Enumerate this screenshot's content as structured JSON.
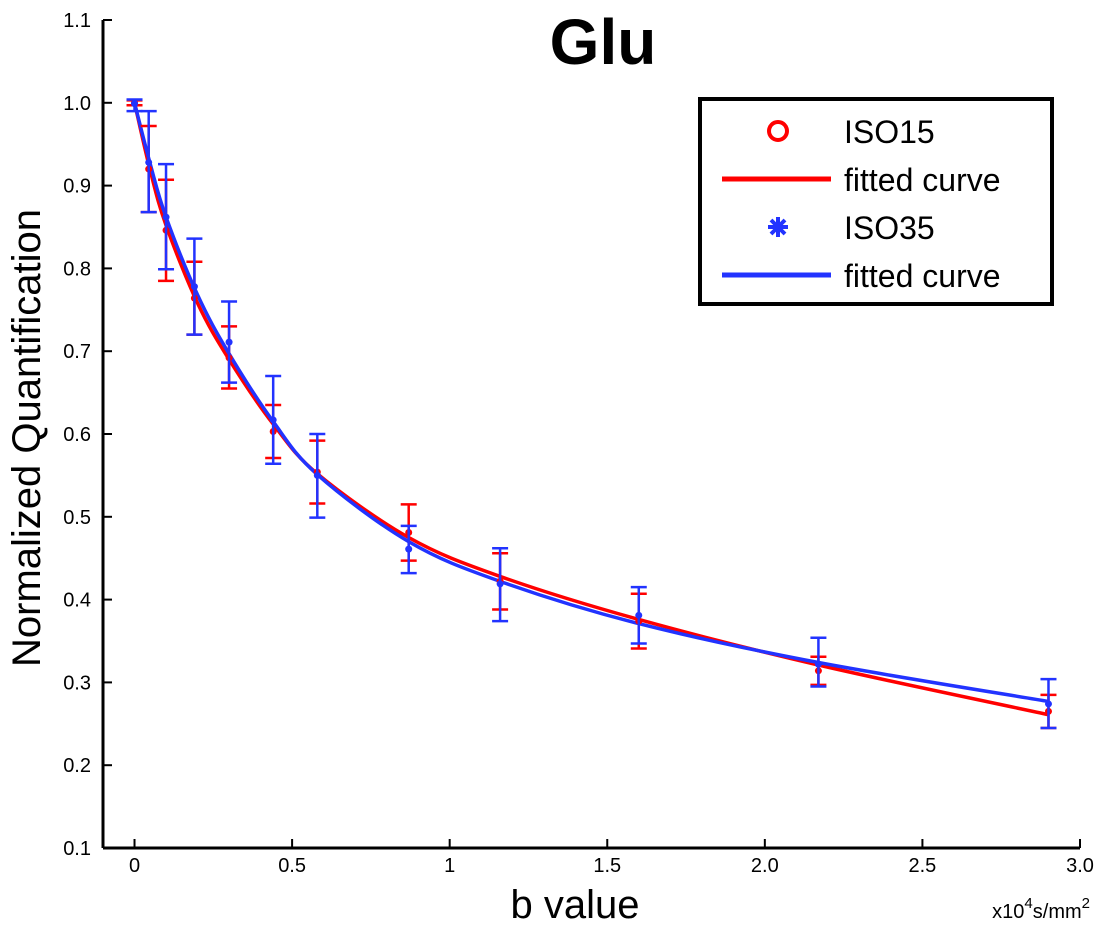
{
  "chart_data": {
    "type": "line",
    "title": "Glu",
    "xlabel": "b value",
    "ylabel": "Normalized Quantification",
    "x_unit_prefix": "x10",
    "x_unit_exp": "4",
    "x_unit_mid": "s/mm",
    "x_unit_exp2": "2",
    "xlim": [
      -0.1,
      3.0
    ],
    "ylim": [
      0.1,
      1.1
    ],
    "x_ticks": [
      0,
      0.5,
      1,
      1.5,
      2,
      2.5,
      3
    ],
    "x_tick_labels": [
      "0",
      "0.5",
      "1",
      "1.5",
      "2.0",
      "2.5",
      "3.0"
    ],
    "y_ticks": [
      0.1,
      0.2,
      0.3,
      0.4,
      0.5,
      0.6,
      0.7,
      0.8,
      0.9,
      1.0,
      1.1
    ],
    "y_tick_labels": [
      "0.1",
      "0.2",
      "0.3",
      "0.4",
      "0.5",
      "0.6",
      "0.7",
      "0.8",
      "0.9",
      "1.0",
      "1.1"
    ],
    "grid": false,
    "legend_position": "top-right",
    "series": [
      {
        "name": "ISO15",
        "kind": "points",
        "marker": "open-circle",
        "color": "#ff0000",
        "x": [
          0,
          0.045,
          0.1,
          0.19,
          0.3,
          0.44,
          0.58,
          0.87,
          1.16,
          1.6,
          2.17,
          2.9
        ],
        "y": [
          1.0,
          0.92,
          0.846,
          0.764,
          0.692,
          0.603,
          0.554,
          0.481,
          0.422,
          0.374,
          0.314,
          0.265
        ],
        "err_low": [
          0.997,
          0.868,
          0.785,
          0.72,
          0.655,
          0.571,
          0.516,
          0.447,
          0.388,
          0.341,
          0.297,
          0.245
        ],
        "err_high": [
          1.003,
          0.972,
          0.907,
          0.808,
          0.73,
          0.635,
          0.592,
          0.515,
          0.456,
          0.407,
          0.331,
          0.285
        ]
      },
      {
        "name": "fitted curve",
        "kind": "curve",
        "color": "#ff0000",
        "x": [
          0,
          0.05,
          0.1,
          0.2,
          0.3,
          0.44,
          0.58,
          0.87,
          1.16,
          1.6,
          2.17,
          2.9
        ],
        "y": [
          1.0,
          0.918,
          0.852,
          0.758,
          0.69,
          0.612,
          0.552,
          0.475,
          0.428,
          0.376,
          0.321,
          0.261
        ]
      },
      {
        "name": "ISO35",
        "kind": "points",
        "marker": "asterisk",
        "color": "#2233ff",
        "x": [
          0,
          0.045,
          0.1,
          0.19,
          0.3,
          0.44,
          0.58,
          0.87,
          1.16,
          1.6,
          2.17,
          2.9
        ],
        "y": [
          0.999,
          0.928,
          0.862,
          0.778,
          0.711,
          0.617,
          0.55,
          0.461,
          0.419,
          0.381,
          0.322,
          0.274
        ],
        "err_low": [
          0.99,
          0.868,
          0.799,
          0.72,
          0.662,
          0.564,
          0.499,
          0.432,
          0.374,
          0.347,
          0.295,
          0.245
        ],
        "err_high": [
          1.004,
          0.99,
          0.926,
          0.836,
          0.76,
          0.67,
          0.6,
          0.489,
          0.462,
          0.415,
          0.354,
          0.304
        ]
      },
      {
        "name": "fitted curve",
        "kind": "curve",
        "color": "#2233ff",
        "x": [
          0,
          0.05,
          0.1,
          0.2,
          0.3,
          0.44,
          0.58,
          0.87,
          1.16,
          1.6,
          2.17,
          2.9
        ],
        "y": [
          1.0,
          0.926,
          0.862,
          0.768,
          0.697,
          0.615,
          0.551,
          0.47,
          0.422,
          0.371,
          0.324,
          0.277
        ]
      }
    ]
  }
}
